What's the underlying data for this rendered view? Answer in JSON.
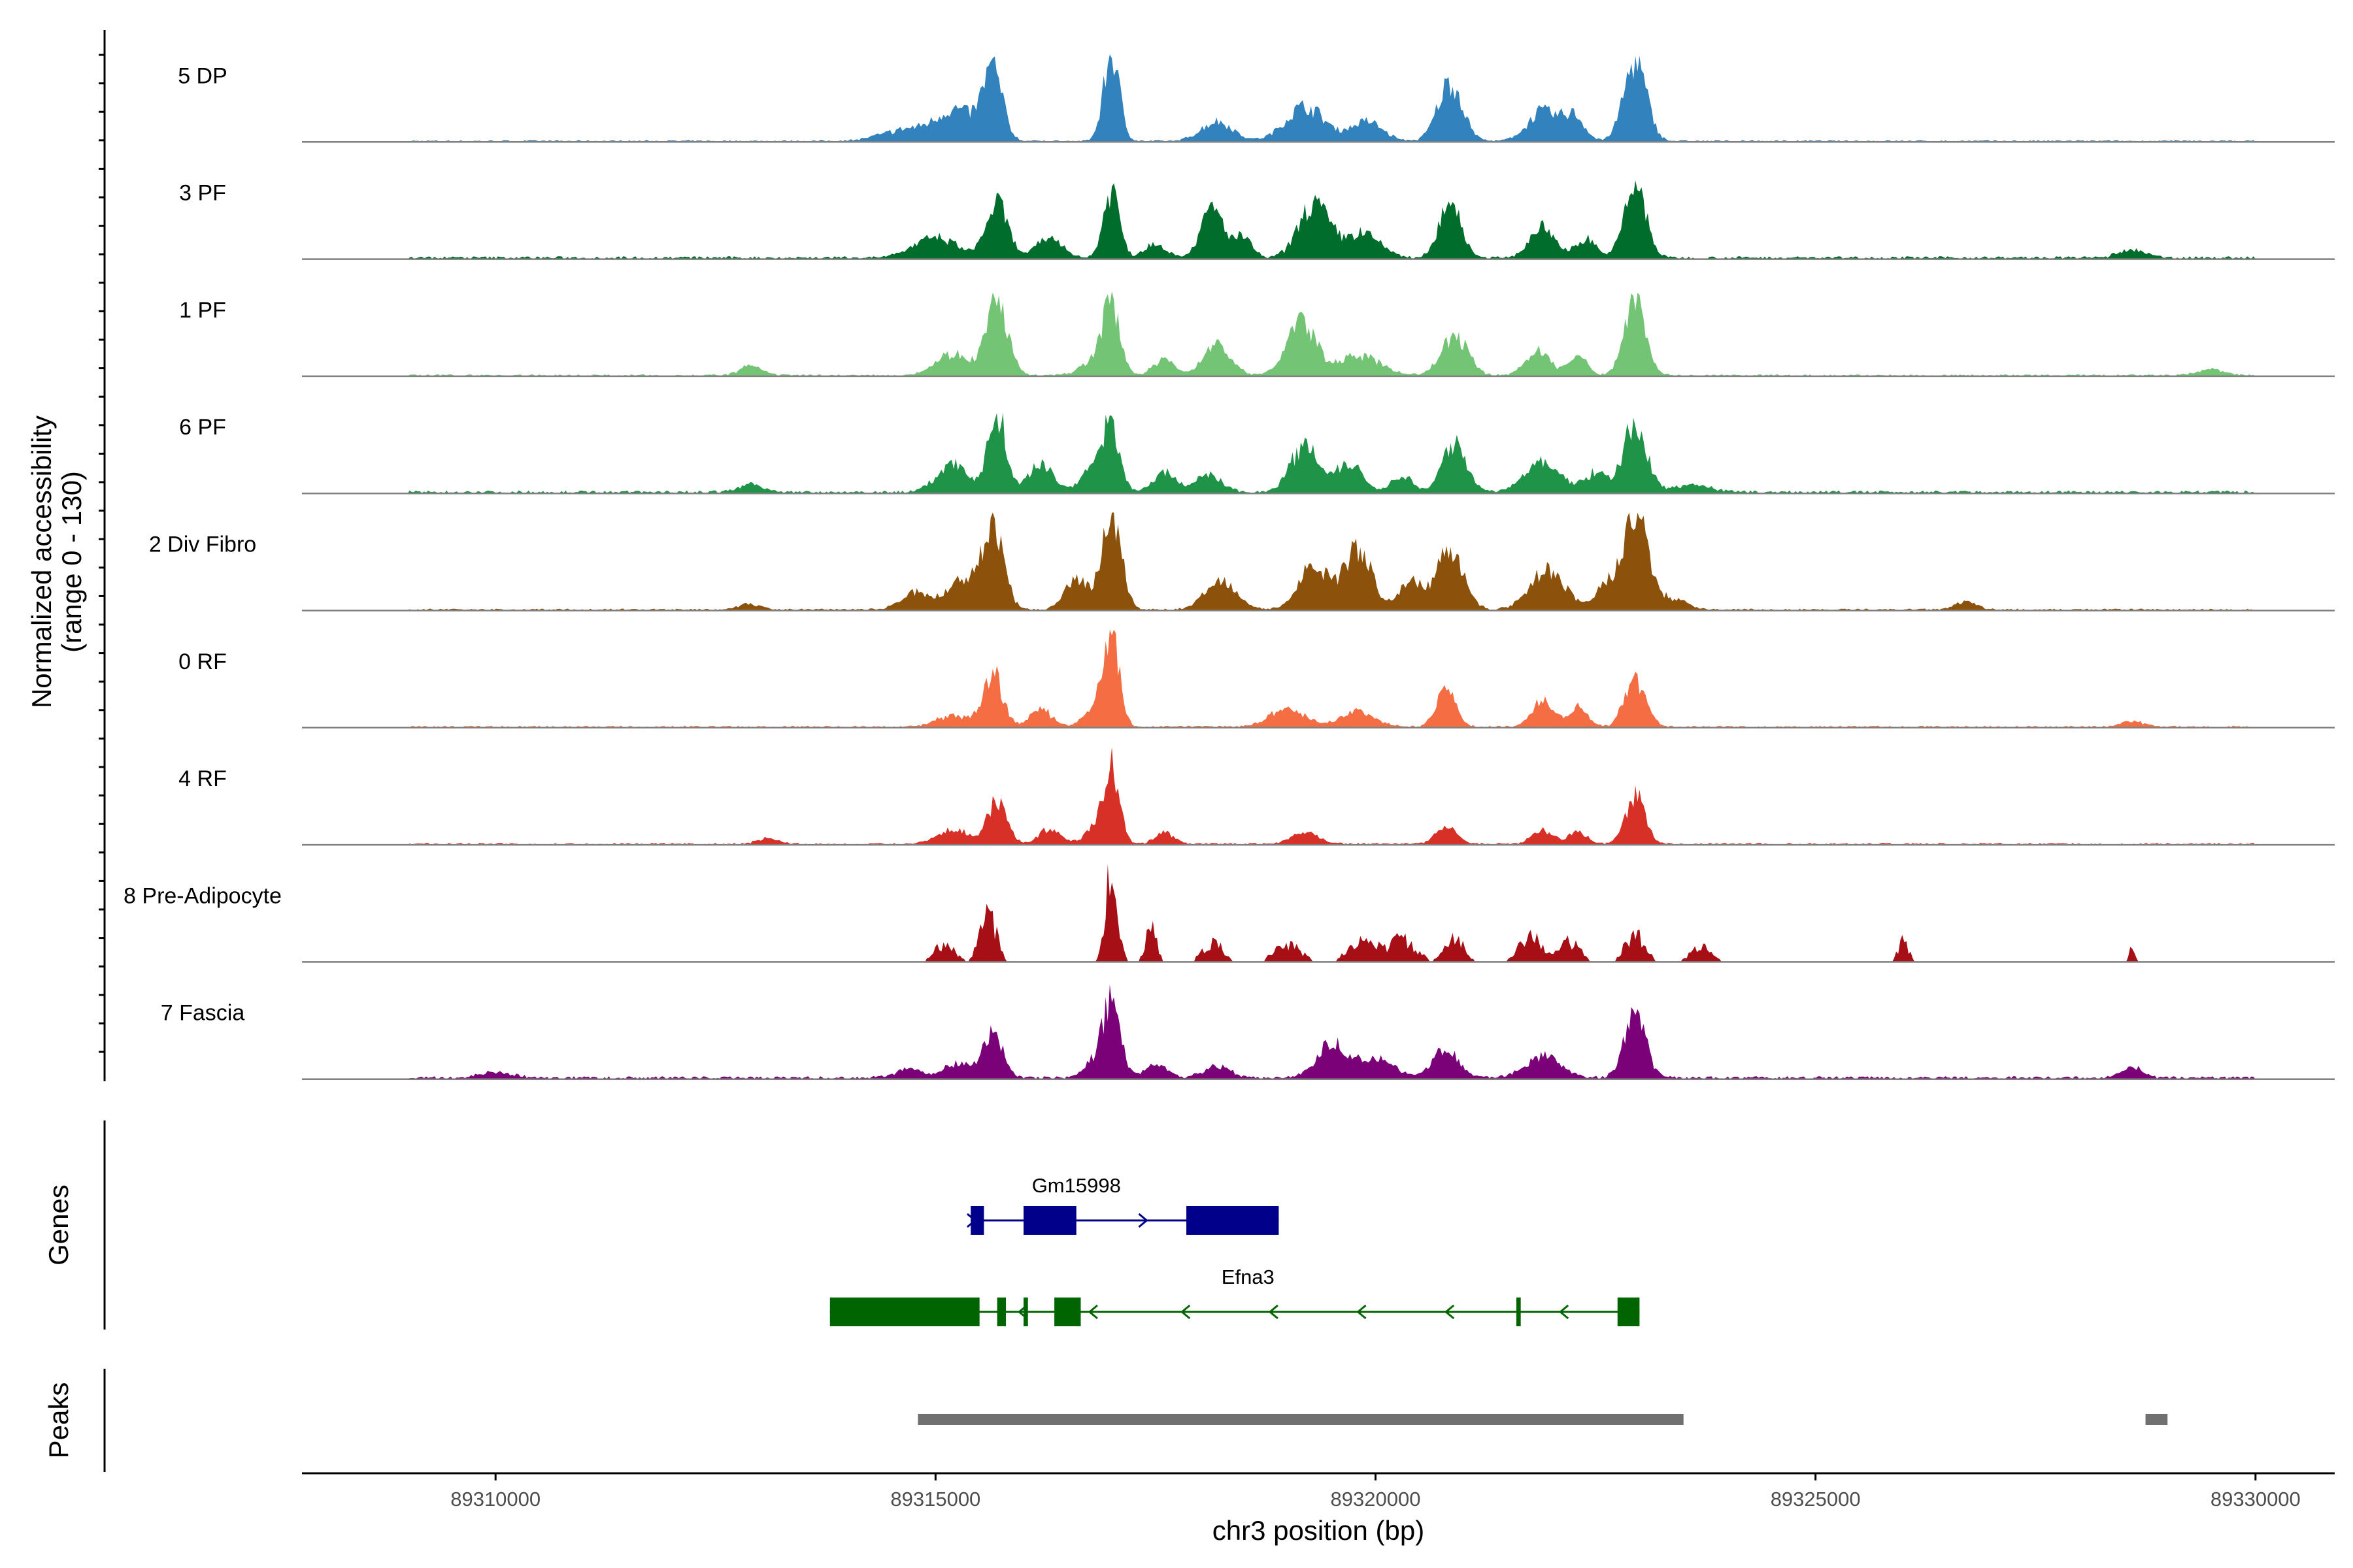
{
  "chart_data": {
    "type": "area",
    "title": "",
    "ylabel_line1": "Normalized accessibility",
    "ylabel_line2": "(range 0 - 130)",
    "yrange": [
      0,
      130
    ],
    "xlabel": "chr3 position (bp)",
    "xlim": [
      89307800,
      89330900
    ],
    "x_ticks": [
      89310000,
      89315000,
      89320000,
      89325000,
      89330000
    ],
    "x_tick_labels": [
      "89310000",
      "89315000",
      "89320000",
      "89325000",
      "89330000"
    ],
    "peak_positions": [
      89315150,
      89315650,
      89317000,
      89318300,
      89319450,
      89320800,
      89321900,
      89322950
    ],
    "tracks": [
      {
        "name": "5 DP",
        "color": "#3182bd",
        "baseline": 2,
        "peaks": [
          [
            89314700,
            12,
            300
          ],
          [
            89315250,
            30,
            220
          ],
          [
            89315650,
            70,
            110
          ],
          [
            89317000,
            88,
            90
          ],
          [
            89318200,
            20,
            180
          ],
          [
            89319200,
            35,
            220
          ],
          [
            89319900,
            20,
            180
          ],
          [
            89320850,
            60,
            140
          ],
          [
            89321900,
            30,
            170
          ],
          [
            89322250,
            25,
            120
          ],
          [
            89322950,
            80,
            130
          ]
        ]
      },
      {
        "name": "3 PF",
        "color": "#006d2c",
        "baseline": 3,
        "peaks": [
          [
            89315000,
            20,
            250
          ],
          [
            89315700,
            55,
            120
          ],
          [
            89316300,
            20,
            150
          ],
          [
            89317000,
            70,
            90
          ],
          [
            89317500,
            15,
            120
          ],
          [
            89318150,
            50,
            130
          ],
          [
            89318500,
            20,
            100
          ],
          [
            89319300,
            55,
            170
          ],
          [
            89319850,
            25,
            200
          ],
          [
            89320850,
            60,
            120
          ],
          [
            89321900,
            30,
            150
          ],
          [
            89322400,
            20,
            110
          ],
          [
            89322950,
            75,
            120
          ],
          [
            89328600,
            8,
            150
          ]
        ]
      },
      {
        "name": "1 PF",
        "color": "#74c476",
        "baseline": 2,
        "peaks": [
          [
            89312900,
            10,
            120
          ],
          [
            89315200,
            22,
            200
          ],
          [
            89315700,
            75,
            120
          ],
          [
            89316800,
            14,
            150
          ],
          [
            89317000,
            68,
            100
          ],
          [
            89317600,
            16,
            120
          ],
          [
            89318200,
            32,
            150
          ],
          [
            89319150,
            55,
            160
          ],
          [
            89319800,
            20,
            250
          ],
          [
            89320900,
            40,
            150
          ],
          [
            89321850,
            25,
            140
          ],
          [
            89322300,
            20,
            100
          ],
          [
            89322950,
            80,
            120
          ],
          [
            89329500,
            6,
            150
          ]
        ]
      },
      {
        "name": "6 PF",
        "color": "#1f9448",
        "baseline": 3,
        "peaks": [
          [
            89312900,
            8,
            130
          ],
          [
            89315200,
            28,
            180
          ],
          [
            89315700,
            80,
            100
          ],
          [
            89316200,
            28,
            140
          ],
          [
            89316800,
            25,
            140
          ],
          [
            89317000,
            60,
            100
          ],
          [
            89317600,
            20,
            120
          ],
          [
            89318100,
            18,
            150
          ],
          [
            89319200,
            48,
            160
          ],
          [
            89319700,
            30,
            150
          ],
          [
            89320300,
            18,
            110
          ],
          [
            89320900,
            53,
            130
          ],
          [
            89321900,
            30,
            200
          ],
          [
            89322500,
            20,
            120
          ],
          [
            89322950,
            70,
            130
          ],
          [
            89323600,
            8,
            200
          ]
        ]
      },
      {
        "name": "2 Div Fibro",
        "color": "#8c510a",
        "baseline": 2,
        "peaks": [
          [
            89312900,
            6,
            120
          ],
          [
            89314800,
            18,
            180
          ],
          [
            89315300,
            30,
            150
          ],
          [
            89315650,
            90,
            120
          ],
          [
            89316600,
            30,
            130
          ],
          [
            89317000,
            100,
            110
          ],
          [
            89318250,
            30,
            180
          ],
          [
            89319300,
            45,
            170
          ],
          [
            89319800,
            60,
            160
          ],
          [
            89320400,
            28,
            130
          ],
          [
            89320850,
            65,
            150
          ],
          [
            89321950,
            40,
            200
          ],
          [
            89322600,
            20,
            120
          ],
          [
            89322950,
            95,
            150
          ],
          [
            89323400,
            10,
            150
          ],
          [
            89326700,
            8,
            120
          ]
        ]
      },
      {
        "name": "0 RF",
        "color": "#f46d43",
        "baseline": 2,
        "peaks": [
          [
            89315200,
            12,
            180
          ],
          [
            89315650,
            55,
            110
          ],
          [
            89316200,
            18,
            120
          ],
          [
            89316800,
            18,
            120
          ],
          [
            89317000,
            90,
            90
          ],
          [
            89319000,
            18,
            200
          ],
          [
            89319800,
            15,
            200
          ],
          [
            89320800,
            38,
            110
          ],
          [
            89321900,
            28,
            120
          ],
          [
            89322300,
            20,
            110
          ],
          [
            89322950,
            48,
            120
          ],
          [
            89328600,
            6,
            120
          ]
        ]
      },
      {
        "name": "4 RF",
        "color": "#d73027",
        "baseline": 2,
        "peaks": [
          [
            89313100,
            6,
            120
          ],
          [
            89315200,
            15,
            180
          ],
          [
            89315700,
            45,
            110
          ],
          [
            89316300,
            15,
            120
          ],
          [
            89316800,
            14,
            120
          ],
          [
            89317000,
            78,
            90
          ],
          [
            89317600,
            12,
            100
          ],
          [
            89319200,
            12,
            150
          ],
          [
            89320800,
            18,
            120
          ],
          [
            89321900,
            14,
            120
          ],
          [
            89322300,
            12,
            100
          ],
          [
            89322950,
            50,
            110
          ]
        ]
      },
      {
        "name": "8 Pre-Adipocyte",
        "color": "#a50f15",
        "baseline": 0,
        "spiky": true,
        "peaks": [
          [
            89315100,
            15,
            120
          ],
          [
            89315600,
            45,
            90
          ],
          [
            89317000,
            82,
            70
          ],
          [
            89317450,
            30,
            60
          ],
          [
            89318150,
            18,
            110
          ],
          [
            89319000,
            15,
            150
          ],
          [
            89319850,
            20,
            150
          ],
          [
            89320300,
            20,
            150
          ],
          [
            89320900,
            20,
            110
          ],
          [
            89321750,
            25,
            120
          ],
          [
            89322200,
            18,
            120
          ],
          [
            89322950,
            25,
            110
          ],
          [
            89323700,
            14,
            120
          ],
          [
            89326000,
            18,
            60
          ],
          [
            89328600,
            12,
            40
          ]
        ]
      },
      {
        "name": "7 Fascia",
        "color": "#7a0177",
        "baseline": 3,
        "peaks": [
          [
            89310000,
            5,
            200
          ],
          [
            89314700,
            10,
            150
          ],
          [
            89315250,
            15,
            150
          ],
          [
            89315650,
            45,
            110
          ],
          [
            89316800,
            14,
            120
          ],
          [
            89317000,
            75,
            100
          ],
          [
            89317500,
            15,
            120
          ],
          [
            89318200,
            12,
            150
          ],
          [
            89319500,
            35,
            170
          ],
          [
            89320000,
            20,
            200
          ],
          [
            89320800,
            30,
            140
          ],
          [
            89321900,
            22,
            200
          ],
          [
            89322950,
            65,
            120
          ],
          [
            89328600,
            10,
            120
          ]
        ]
      }
    ],
    "genes": [
      {
        "name": "Gm15998",
        "color": "#00008b",
        "strand": "+",
        "start": 89315400,
        "end": 89318900,
        "exons": [
          [
            89315400,
            89315550
          ],
          [
            89316000,
            89316600
          ],
          [
            89317850,
            89318900
          ]
        ],
        "arrows": [
          89315450,
          89317400
        ]
      },
      {
        "name": "Efna3",
        "color": "#006400",
        "strand": "-",
        "start": 89313800,
        "end": 89323000,
        "exons": [
          [
            89313800,
            89315500
          ],
          [
            89315700,
            89315800
          ],
          [
            89316000,
            89316050
          ],
          [
            89316350,
            89316650
          ],
          [
            89321600,
            89321650
          ],
          [
            89322750,
            89323000
          ]
        ],
        "arrows": [
          89315950,
          89316750,
          89317800,
          89318800,
          89319800,
          89320800,
          89322100
        ]
      }
    ],
    "peaks_track": [
      {
        "start": 89314800,
        "end": 89323500
      },
      {
        "start": 89328750,
        "end": 89329000
      }
    ],
    "side_titles": {
      "genes": "Genes",
      "peaks": "Peaks"
    },
    "colors": {
      "baseline": "#808080",
      "peak_bar": "#707070",
      "axis": "#000000"
    }
  }
}
